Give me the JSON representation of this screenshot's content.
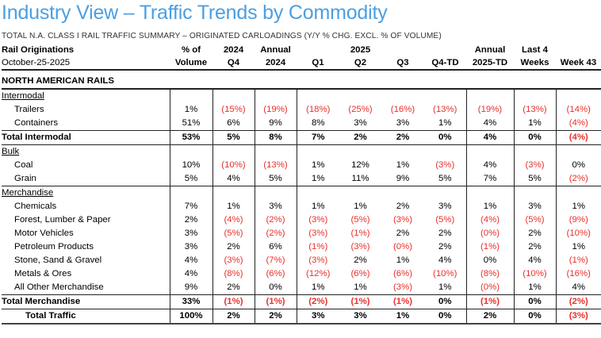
{
  "title": "Industry View – Traffic Trends by Commodity",
  "subtitle": "TOTAL N.A. CLASS I RAIL TRAFFIC SUMMARY – ORIGINATED CARLOADINGS (Y/Y % CHG. EXCL. % OF VOLUME)",
  "header": {
    "label_line1": "Rail Originations",
    "label_line2": "October-25-2025",
    "year_2025": "2025",
    "columns": [
      {
        "line1": "% of",
        "line2": "Volume"
      },
      {
        "line1": "2024",
        "line2": "Q4"
      },
      {
        "line1": "Annual",
        "line2": "2024"
      },
      {
        "line1": "",
        "line2": "Q1"
      },
      {
        "line1": "",
        "line2": "Q2"
      },
      {
        "line1": "",
        "line2": "Q3"
      },
      {
        "line1": "",
        "line2": "Q4-TD"
      },
      {
        "line1": "Annual",
        "line2": "2025-TD"
      },
      {
        "line1": "Last 4",
        "line2": "Weeks"
      },
      {
        "line1": "",
        "line2": "Week 43"
      }
    ]
  },
  "section_title": "NORTH AMERICAN RAILS",
  "colors": {
    "title": "#4b9fe1",
    "negative": "#e8312b",
    "text": "#000000"
  },
  "groups": [
    {
      "name": "Intermodal",
      "rows": [
        {
          "label": "Trailers",
          "values": [
            "1%",
            "(15%)",
            "(19%)",
            "(18%)",
            "(25%)",
            "(16%)",
            "(13%)",
            "(19%)",
            "(13%)",
            "(14%)"
          ]
        },
        {
          "label": "Containers",
          "values": [
            "51%",
            "6%",
            "9%",
            "8%",
            "3%",
            "3%",
            "1%",
            "4%",
            "1%",
            "(4%)"
          ]
        }
      ],
      "total": {
        "label": "Total Intermodal",
        "values": [
          "53%",
          "5%",
          "8%",
          "7%",
          "2%",
          "2%",
          "0%",
          "4%",
          "0%",
          "(4%)"
        ]
      }
    },
    {
      "name": "Bulk",
      "rows": [
        {
          "label": "Coal",
          "values": [
            "10%",
            "(10%)",
            "(13%)",
            "1%",
            "12%",
            "1%",
            "(3%)",
            "4%",
            "(3%)",
            "0%"
          ]
        },
        {
          "label": "Grain",
          "values": [
            "5%",
            "4%",
            "5%",
            "1%",
            "11%",
            "9%",
            "5%",
            "7%",
            "5%",
            "(2%)"
          ]
        }
      ]
    },
    {
      "name": "Merchandise",
      "rows": [
        {
          "label": "Chemicals",
          "values": [
            "7%",
            "1%",
            "3%",
            "1%",
            "1%",
            "2%",
            "3%",
            "1%",
            "3%",
            "1%"
          ]
        },
        {
          "label": "Forest, Lumber & Paper",
          "values": [
            "2%",
            "(4%)",
            "(2%)",
            "(3%)",
            "(5%)",
            "(3%)",
            "(5%)",
            "(4%)",
            "(5%)",
            "(9%)"
          ]
        },
        {
          "label": "Motor Vehicles",
          "values": [
            "3%",
            "(5%)",
            "(2%)",
            "(3%)",
            "(1%)",
            "2%",
            "2%",
            "(0%)",
            "2%",
            "(10%)"
          ]
        },
        {
          "label": "Petroleum Products",
          "values": [
            "3%",
            "2%",
            "6%",
            "(1%)",
            "(3%)",
            "(0%)",
            "2%",
            "(1%)",
            "2%",
            "1%"
          ]
        },
        {
          "label": "Stone, Sand & Gravel",
          "values": [
            "4%",
            "(3%)",
            "(7%)",
            "(3%)",
            "2%",
            "1%",
            "4%",
            "0%",
            "4%",
            "(1%)"
          ]
        },
        {
          "label": "Metals & Ores",
          "values": [
            "4%",
            "(8%)",
            "(6%)",
            "(12%)",
            "(6%)",
            "(6%)",
            "(10%)",
            "(8%)",
            "(10%)",
            "(16%)"
          ]
        },
        {
          "label": "All Other Merchandise",
          "values": [
            "9%",
            "2%",
            "0%",
            "1%",
            "1%",
            "(3%)",
            "1%",
            "(0%)",
            "1%",
            "4%"
          ]
        }
      ],
      "total": {
        "label": "Total Merchandise",
        "values": [
          "33%",
          "(1%)",
          "(1%)",
          "(2%)",
          "(1%)",
          "(1%)",
          "0%",
          "(1%)",
          "0%",
          "(2%)"
        ]
      }
    }
  ],
  "grand_total": {
    "label": "Total Traffic",
    "values": [
      "100%",
      "2%",
      "2%",
      "3%",
      "3%",
      "1%",
      "0%",
      "2%",
      "0%",
      "(3%)"
    ]
  }
}
